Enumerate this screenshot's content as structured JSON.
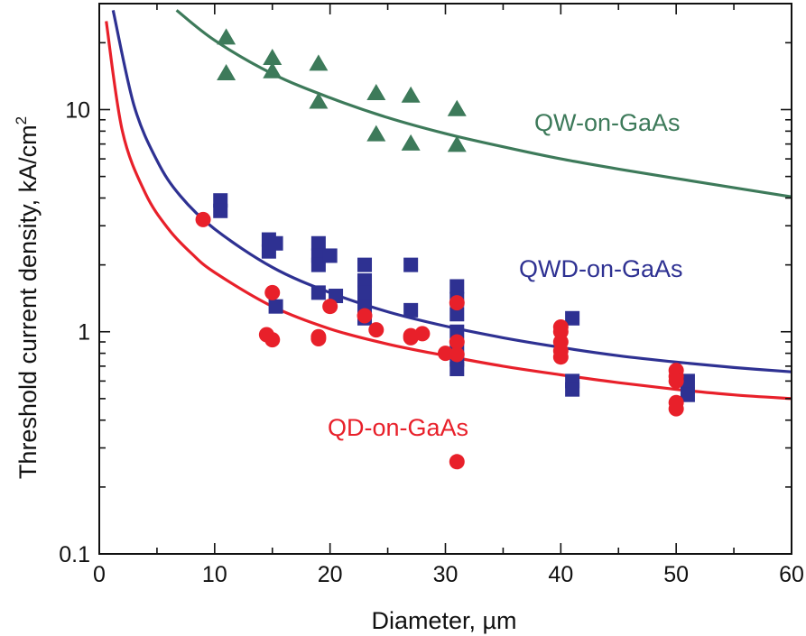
{
  "chart_data": {
    "type": "scatter",
    "title": "",
    "xlabel": "Diameter, µm",
    "ylabel": "Threshold current density, kA/cm",
    "ylabel_superscript": "2",
    "xlim": [
      0,
      60
    ],
    "ylim": [
      0.1,
      30
    ],
    "yscale": "log",
    "x_ticks": [
      0,
      10,
      20,
      30,
      40,
      50,
      60
    ],
    "x_tick_labels": [
      "0",
      "10",
      "20",
      "30",
      "40",
      "50",
      "60"
    ],
    "y_ticks": [
      0.1,
      1,
      10
    ],
    "y_tick_labels": [
      "0.1",
      "1",
      "10"
    ],
    "series": [
      {
        "name": "QW-on-GaAs",
        "color": "#3d7a5a",
        "marker": "triangle",
        "points": [
          [
            11,
            21
          ],
          [
            11,
            14.5
          ],
          [
            15,
            17
          ],
          [
            15,
            14.8
          ],
          [
            19,
            16
          ],
          [
            19,
            10.8
          ],
          [
            24,
            11.8
          ],
          [
            24,
            7.7
          ],
          [
            27,
            11.5
          ],
          [
            27,
            7
          ],
          [
            31,
            10
          ],
          [
            31,
            6.9
          ]
        ],
        "fit": [
          [
            6.7,
            28
          ],
          [
            10,
            20.5
          ],
          [
            15,
            14.5
          ],
          [
            20,
            11.3
          ],
          [
            25,
            9.2
          ],
          [
            30,
            7.8
          ],
          [
            35,
            6.8
          ],
          [
            40,
            6.0
          ],
          [
            45,
            5.4
          ],
          [
            50,
            4.9
          ],
          [
            55,
            4.45
          ],
          [
            60,
            4.05
          ]
        ]
      },
      {
        "name": "QWD-on-GaAs",
        "color": "#2e3192",
        "marker": "square",
        "points": [
          [
            10.5,
            3.9
          ],
          [
            10.5,
            3.5
          ],
          [
            14.7,
            2.6
          ],
          [
            14.7,
            2.3
          ],
          [
            15.3,
            2.5
          ],
          [
            15.3,
            1.3
          ],
          [
            19,
            2.5
          ],
          [
            19,
            2.2
          ],
          [
            19,
            2.0
          ],
          [
            19,
            1.5
          ],
          [
            20,
            2.2
          ],
          [
            20.5,
            1.45
          ],
          [
            23,
            2.0
          ],
          [
            23,
            1.7
          ],
          [
            23,
            1.5
          ],
          [
            23,
            1.3
          ],
          [
            23,
            1.15
          ],
          [
            27,
            2.0
          ],
          [
            27,
            1.25
          ],
          [
            31,
            1.6
          ],
          [
            31,
            1.4
          ],
          [
            31,
            1.2
          ],
          [
            31,
            1.0
          ],
          [
            31,
            0.85
          ],
          [
            31,
            0.75
          ],
          [
            31,
            0.68
          ],
          [
            41,
            1.15
          ],
          [
            41,
            0.6
          ],
          [
            41,
            0.55
          ],
          [
            51,
            0.6
          ],
          [
            51,
            0.52
          ]
        ],
        "fit": [
          [
            1.2,
            28
          ],
          [
            3,
            10.5
          ],
          [
            5,
            5.9
          ],
          [
            7,
            4.1
          ],
          [
            10,
            2.9
          ],
          [
            15,
            1.95
          ],
          [
            20,
            1.5
          ],
          [
            25,
            1.23
          ],
          [
            30,
            1.06
          ],
          [
            35,
            0.94
          ],
          [
            40,
            0.85
          ],
          [
            45,
            0.78
          ],
          [
            50,
            0.73
          ],
          [
            55,
            0.69
          ],
          [
            60,
            0.66
          ]
        ]
      },
      {
        "name": "QD-on-GaAs",
        "color": "#e8202a",
        "marker": "circle",
        "points": [
          [
            9,
            3.2
          ],
          [
            15,
            1.5
          ],
          [
            14.5,
            0.97
          ],
          [
            15,
            0.92
          ],
          [
            19,
            0.95
          ],
          [
            19,
            0.93
          ],
          [
            20,
            1.3
          ],
          [
            23,
            1.18
          ],
          [
            24,
            1.02
          ],
          [
            27,
            0.96
          ],
          [
            27,
            0.94
          ],
          [
            28,
            0.98
          ],
          [
            30,
            0.8
          ],
          [
            31,
            1.35
          ],
          [
            31,
            0.9
          ],
          [
            31,
            0.79
          ],
          [
            31,
            0.26
          ],
          [
            40,
            1.05
          ],
          [
            40,
            1.0
          ],
          [
            40,
            0.9
          ],
          [
            40,
            0.82
          ],
          [
            40,
            0.77
          ],
          [
            50,
            0.67
          ],
          [
            50,
            0.63
          ],
          [
            50,
            0.6
          ],
          [
            50,
            0.48
          ],
          [
            50,
            0.45
          ]
        ],
        "fit": [
          [
            0.6,
            25
          ],
          [
            2,
            8.0
          ],
          [
            4,
            4.2
          ],
          [
            6,
            2.9
          ],
          [
            8,
            2.25
          ],
          [
            10,
            1.85
          ],
          [
            15,
            1.3
          ],
          [
            20,
            1.03
          ],
          [
            25,
            0.88
          ],
          [
            30,
            0.78
          ],
          [
            35,
            0.7
          ],
          [
            40,
            0.64
          ],
          [
            45,
            0.59
          ],
          [
            50,
            0.55
          ],
          [
            55,
            0.52
          ],
          [
            60,
            0.5
          ]
        ]
      }
    ],
    "annotations": [
      "QW-on-GaAs",
      "QWD-on-GaAs",
      "QD-on-GaAs"
    ]
  }
}
